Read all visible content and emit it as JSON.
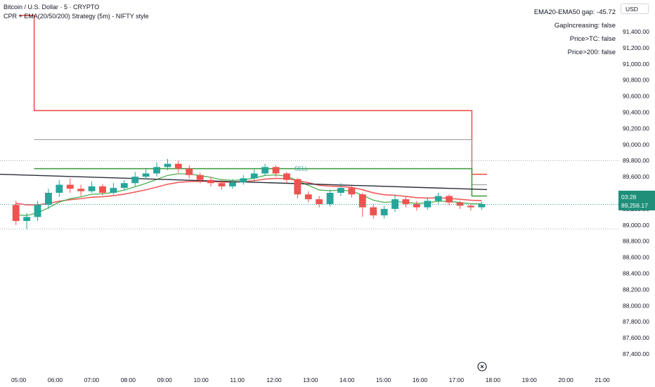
{
  "header": {
    "symbol_line": "Bitcoin / U.S. Dollar · 5 · CRYPTO",
    "strategy_line": "CPR + EMA(20/50/200) Strategy (5m) - NIFTY style"
  },
  "info_panel": [
    "EMA20-EMA50 gap: -45.72",
    "GapIncreasing: false",
    "Price>TC: false",
    "Price>200: false"
  ],
  "currency_button": "USD",
  "price_axis_labels": [
    "91,400.00",
    "91,200.00",
    "91,000.00",
    "90,800.00",
    "90,600.00",
    "90,400.00",
    "90,200.00",
    "90,000.00",
    "89,800.00",
    "89,600.00",
    "89,400.00",
    "89,200.00",
    "89,000.00",
    "88,800.00",
    "88,600.00",
    "88,400.00",
    "88,200.00",
    "88,000.00",
    "87,800.00",
    "87,600.00",
    "87,400.00"
  ],
  "time_axis_labels": [
    "05:00",
    "06:00",
    "07:00",
    "08:00",
    "09:00",
    "10:00",
    "11:00",
    "12:00",
    "13:00",
    "14:00",
    "15:00",
    "16:00",
    "17:00",
    "18:00",
    "19:00",
    "20:00",
    "21:00"
  ],
  "price_tags": {
    "upper": "89,400.00",
    "timer": "03:28",
    "last": "89,256.17"
  },
  "signal_label": "SELL",
  "colors": {
    "up": "#26a69a",
    "down": "#ef5350",
    "ema20": "#4caf50",
    "ema50": "#f05c5c",
    "ema200": "#2a2e39",
    "cpr_red": "#ef5350",
    "cpr_gray": "#9e9e9e",
    "cpr_green": "#43a047"
  },
  "chart_data": {
    "type": "candlestick",
    "x_axis": "time (5m bars)",
    "ylim": [
      87300,
      91600
    ],
    "last_price": 89256.17,
    "cpr_levels": [
      {
        "name": "upper",
        "segments": [
          {
            "from": "05:00",
            "to": "05:25",
            "value": 91600
          },
          {
            "from": "05:25",
            "to": "17:25",
            "value": 90420
          },
          {
            "from": "17:25",
            "to": "17:50",
            "value": 89630
          }
        ]
      },
      {
        "name": "middle",
        "segments": [
          {
            "from": "05:25",
            "to": "17:25",
            "value": 90060
          },
          {
            "from": "17:25",
            "to": "17:50",
            "value": 89500
          }
        ]
      },
      {
        "name": "lower",
        "segments": [
          {
            "from": "05:25",
            "to": "17:25",
            "value": 89700
          },
          {
            "from": "17:25",
            "to": "17:50",
            "value": 89360
          }
        ]
      }
    ],
    "ema200": {
      "start": 89630,
      "end": 89440
    },
    "sell_signal": {
      "time": "12:40",
      "price": 89570
    },
    "candles_approx": [
      [
        89250,
        89050,
        89300,
        89000
      ],
      [
        89050,
        89100,
        89150,
        88950
      ],
      [
        89100,
        89250,
        89300,
        89050
      ],
      [
        89250,
        89400,
        89450,
        89200
      ],
      [
        89400,
        89500,
        89560,
        89350
      ],
      [
        89500,
        89450,
        89580,
        89400
      ],
      [
        89450,
        89420,
        89500,
        89360
      ],
      [
        89420,
        89480,
        89540,
        89400
      ],
      [
        89480,
        89400,
        89510,
        89370
      ],
      [
        89400,
        89460,
        89520,
        89380
      ],
      [
        89460,
        89520,
        89560,
        89430
      ],
      [
        89520,
        89600,
        89660,
        89480
      ],
      [
        89600,
        89640,
        89700,
        89570
      ],
      [
        89640,
        89720,
        89780,
        89600
      ],
      [
        89720,
        89760,
        89820,
        89680
      ],
      [
        89760,
        89700,
        89800,
        89650
      ],
      [
        89700,
        89620,
        89740,
        89580
      ],
      [
        89620,
        89560,
        89650,
        89520
      ],
      [
        89560,
        89520,
        89600,
        89480
      ],
      [
        89520,
        89480,
        89560,
        89440
      ],
      [
        89480,
        89530,
        89570,
        89450
      ],
      [
        89530,
        89580,
        89620,
        89500
      ],
      [
        89580,
        89640,
        89690,
        89550
      ],
      [
        89640,
        89720,
        89760,
        89610
      ],
      [
        89720,
        89640,
        89740,
        89600
      ],
      [
        89640,
        89560,
        89660,
        89520
      ],
      [
        89560,
        89380,
        89580,
        89330
      ],
      [
        89380,
        89320,
        89420,
        89280
      ],
      [
        89320,
        89260,
        89360,
        89220
      ],
      [
        89260,
        89400,
        89440,
        89230
      ],
      [
        89400,
        89460,
        89520,
        89360
      ],
      [
        89460,
        89380,
        89480,
        89340
      ],
      [
        89380,
        89220,
        89400,
        89100
      ],
      [
        89220,
        89120,
        89260,
        89080
      ],
      [
        89120,
        89200,
        89240,
        89080
      ],
      [
        89200,
        89320,
        89380,
        89160
      ],
      [
        89320,
        89260,
        89360,
        89220
      ],
      [
        89260,
        89220,
        89300,
        89180
      ],
      [
        89220,
        89300,
        89340,
        89190
      ],
      [
        89300,
        89360,
        89400,
        89260
      ],
      [
        89360,
        89280,
        89380,
        89240
      ],
      [
        89280,
        89240,
        89300,
        89200
      ],
      [
        89240,
        89220,
        89270,
        89180
      ],
      [
        89220,
        89260,
        89290,
        89190
      ]
    ]
  }
}
